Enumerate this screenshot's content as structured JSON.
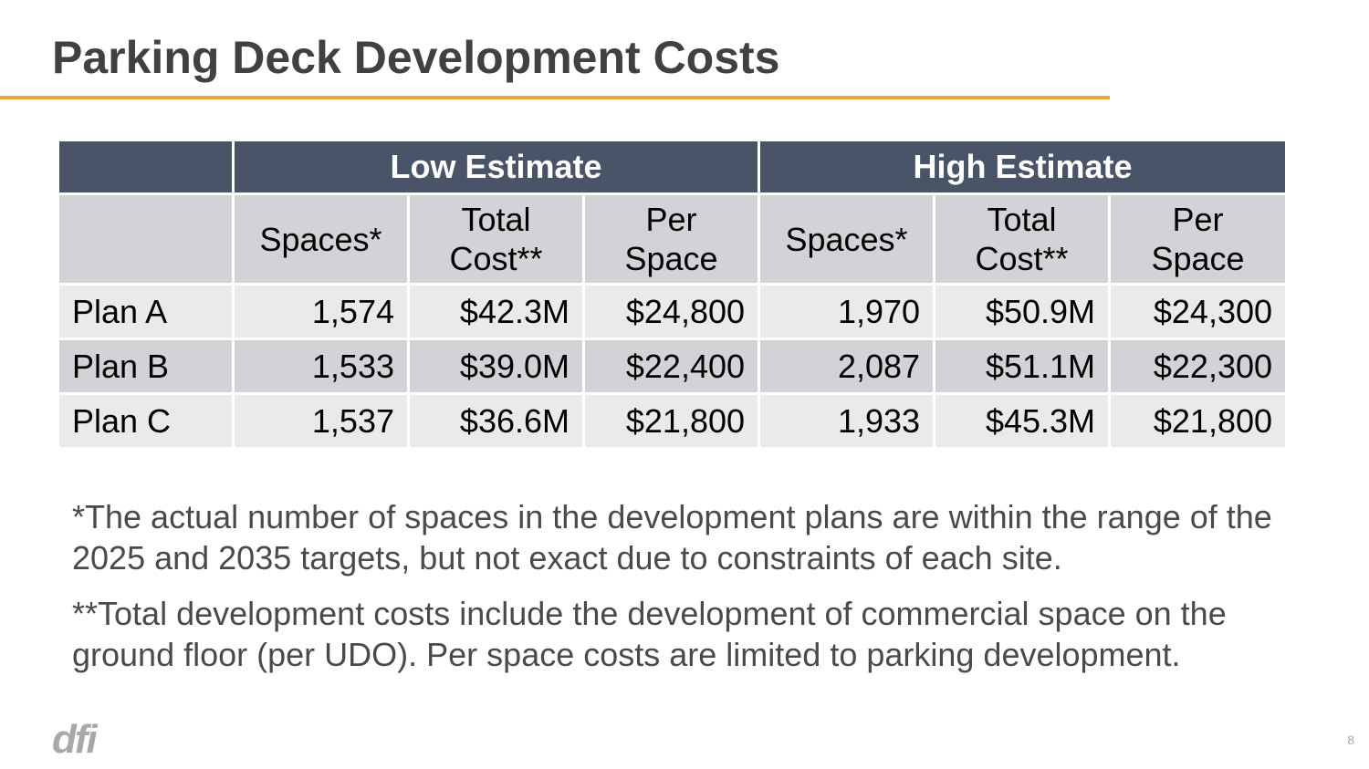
{
  "slide": {
    "title": "Parking Deck Development Costs",
    "page_number": "8",
    "logo_text": "dfi",
    "accent_color": "#E8A33B",
    "header_color": "#4A5468"
  },
  "table": {
    "groups": [
      "",
      "Low Estimate",
      "High Estimate"
    ],
    "columns": {
      "spaces": "Spaces*",
      "total_cost_1": "Total",
      "total_cost_2": "Cost**",
      "per_space_1": "Per",
      "per_space_2": "Space"
    },
    "rows": [
      {
        "label": "Plan A",
        "low_spaces": "1,574",
        "low_total": "$42.3M",
        "low_per": "$24,800",
        "high_spaces": "1,970",
        "high_total": "$50.9M",
        "high_per": "$24,300"
      },
      {
        "label": "Plan B",
        "low_spaces": "1,533",
        "low_total": "$39.0M",
        "low_per": "$22,400",
        "high_spaces": "2,087",
        "high_total": "$51.1M",
        "high_per": "$22,300"
      },
      {
        "label": "Plan C",
        "low_spaces": "1,537",
        "low_total": "$36.6M",
        "low_per": "$21,800",
        "high_spaces": "1,933",
        "high_total": "$45.3M",
        "high_per": "$21,800"
      }
    ]
  },
  "notes": [
    "*The actual number of spaces in the development plans are within the range of the 2025 and 2035 targets,  but not exact due to constraints of each site.",
    "**Total development costs include the development of commercial space on the ground floor (per UDO). Per space costs are limited to parking development."
  ]
}
